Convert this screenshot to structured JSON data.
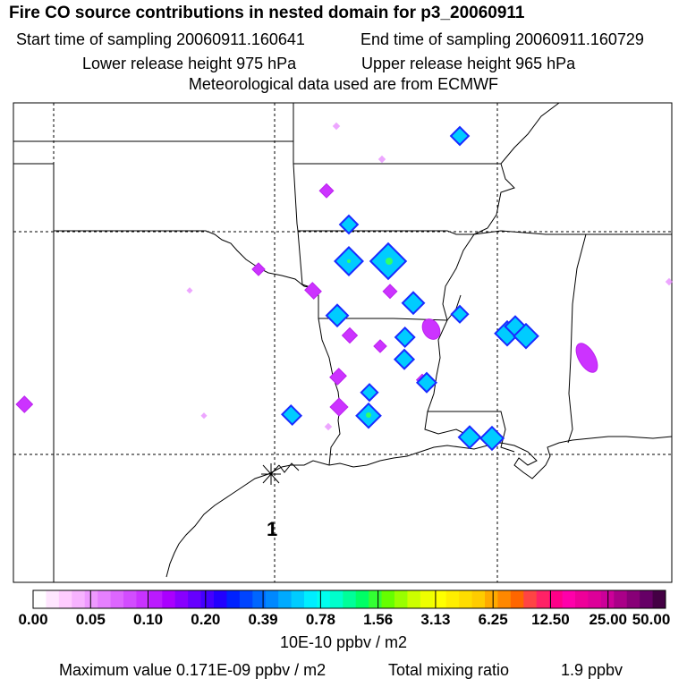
{
  "header": {
    "title": "Fire CO source contributions in nested domain for p3_20060911",
    "start_time": "Start time of sampling 20060911.160641",
    "end_time": "End time of sampling 20060911.160729",
    "lower_release": "Lower release height  975 hPa",
    "upper_release": "Upper release height  965 hPa",
    "met_data": "Meteorological data used are from ECMWF"
  },
  "map": {
    "release_marker_label": "1",
    "plume_colors": {
      "magenta": "#cc33ff",
      "blue": "#1a2aff",
      "cyan": "#00e5ff",
      "green": "#33ff66"
    }
  },
  "legend": {
    "colors": [
      "#ffffff",
      "#ffe6ff",
      "#ffccff",
      "#f7b3ff",
      "#ee99ff",
      "#e680ff",
      "#dd66ff",
      "#d24dff",
      "#c933ff",
      "#bb1aff",
      "#aa00ff",
      "#8800ff",
      "#6600ff",
      "#4400ff",
      "#2200ff",
      "#0022ff",
      "#0044ff",
      "#0066ff",
      "#0088ff",
      "#00aaff",
      "#00ccff",
      "#00eeff",
      "#00ffee",
      "#00ffcc",
      "#00ff99",
      "#00ff66",
      "#33ff33",
      "#66ff00",
      "#99ff00",
      "#ccff00",
      "#eeff00",
      "#ffff00",
      "#ffee00",
      "#ffdd00",
      "#ffcc00",
      "#ffaa00",
      "#ff8800",
      "#ff6600",
      "#ff4444",
      "#ff2266",
      "#ff0088",
      "#ff00aa",
      "#ee0099",
      "#dd0099",
      "#cc0099",
      "#aa0088",
      "#880077",
      "#660066",
      "#440044"
    ],
    "tick_labels": [
      "0.00",
      "0.05",
      "0.10",
      "0.20",
      "0.39",
      "0.78",
      "1.56",
      "3.13",
      "6.25",
      "12.50",
      "25.00",
      "50.00"
    ],
    "units": "10E-10 ppbv / m2"
  },
  "footer": {
    "max_value": "Maximum value  0.171E-09 ppbv / m2",
    "total_label": "Total mixing ratio",
    "total_value": "1.9 ppbv"
  }
}
